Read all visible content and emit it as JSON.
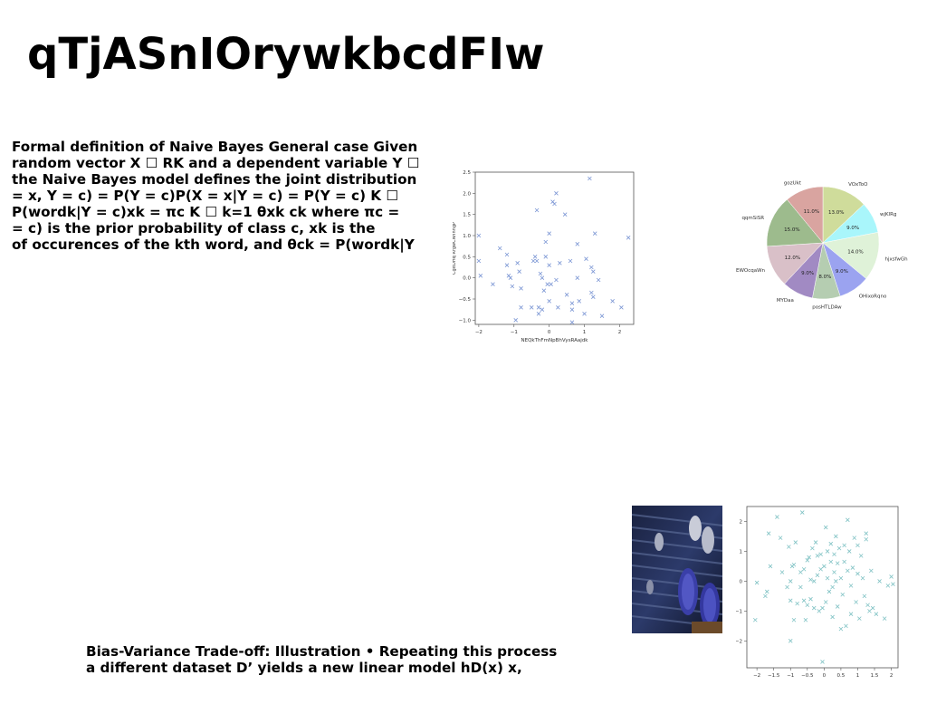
{
  "slide": {
    "title": "qTjASnIOrywkbcdFIw",
    "paragraph1": [
      "Formal definition of Naive Bayes General case Given",
      "random vector X ☐ RK and a dependent variable Y ☐",
      "the Naive Bayes model defines the joint distribution",
      "= x, Y = c) = P(Y = c)P(X = x|Y = c) = P(Y = c) K ☐",
      "P(wordk|Y = c)xk = πc K ☐ k=1 θxk ck where πc =",
      "= c) is the prior probability of class c, xk is the",
      "of occurences of the kth word, and θck = P(wordk|Y"
    ],
    "paragraph2": [
      "Bias-Variance Trade-off: Illustration • Repeating this process",
      "a different dataset D’ yields a new linear model hD(x) x,"
    ]
  },
  "photo": {
    "icon": "sneakers-photo",
    "description_colors": [
      "#1e2a4a",
      "#3b4a8c",
      "#9aa0b8"
    ]
  },
  "chart_data": [
    {
      "type": "scatter",
      "xlabel": "NEQkThFmNpBhVysRAajdk",
      "ylabel": "CgltDHq RrgwCNnnngP",
      "xlim": [
        -2.1,
        2.4
      ],
      "ylim": [
        -1.1,
        2.5
      ],
      "xticks": [
        -2,
        -1,
        0,
        1,
        2
      ],
      "yticks": [
        -1.0,
        -0.5,
        0.0,
        0.5,
        1.0,
        1.5,
        2.0,
        2.5
      ],
      "marker": "x",
      "color": "#7b96d4",
      "points": [
        [
          -2.0,
          1.0
        ],
        [
          -2.0,
          0.4
        ],
        [
          -1.95,
          0.05
        ],
        [
          -1.6,
          -0.15
        ],
        [
          -1.4,
          0.7
        ],
        [
          -1.2,
          0.55
        ],
        [
          -1.2,
          0.3
        ],
        [
          -1.15,
          0.05
        ],
        [
          -1.1,
          0.0
        ],
        [
          -1.05,
          -0.2
        ],
        [
          -0.95,
          -1.0
        ],
        [
          -0.9,
          0.35
        ],
        [
          -0.85,
          0.15
        ],
        [
          -0.8,
          -0.25
        ],
        [
          -0.8,
          -0.7
        ],
        [
          -0.5,
          -0.7
        ],
        [
          -0.45,
          0.4
        ],
        [
          -0.4,
          0.5
        ],
        [
          -0.35,
          0.4
        ],
        [
          -0.35,
          1.6
        ],
        [
          -0.3,
          -0.7
        ],
        [
          -0.3,
          -0.85
        ],
        [
          -0.25,
          0.1
        ],
        [
          -0.2,
          0.0
        ],
        [
          -0.2,
          -0.75
        ],
        [
          -0.15,
          -0.3
        ],
        [
          -0.1,
          0.5
        ],
        [
          -0.1,
          0.85
        ],
        [
          -0.05,
          -0.15
        ],
        [
          0.0,
          1.05
        ],
        [
          0.0,
          0.3
        ],
        [
          0.0,
          -0.55
        ],
        [
          0.05,
          -0.15
        ],
        [
          0.1,
          1.8
        ],
        [
          0.15,
          1.75
        ],
        [
          0.2,
          2.0
        ],
        [
          0.2,
          -0.05
        ],
        [
          0.25,
          -0.7
        ],
        [
          0.3,
          0.35
        ],
        [
          0.45,
          1.5
        ],
        [
          0.5,
          -0.4
        ],
        [
          0.6,
          0.4
        ],
        [
          0.65,
          -0.6
        ],
        [
          0.65,
          -0.75
        ],
        [
          0.65,
          -1.05
        ],
        [
          0.8,
          0.8
        ],
        [
          0.8,
          0.0
        ],
        [
          0.85,
          -0.55
        ],
        [
          1.0,
          -0.85
        ],
        [
          1.05,
          0.45
        ],
        [
          1.15,
          2.35
        ],
        [
          1.2,
          0.25
        ],
        [
          1.2,
          -0.35
        ],
        [
          1.25,
          0.15
        ],
        [
          1.25,
          -0.45
        ],
        [
          1.3,
          1.05
        ],
        [
          1.4,
          -0.05
        ],
        [
          1.5,
          -0.9
        ],
        [
          1.8,
          -0.55
        ],
        [
          2.05,
          -0.7
        ],
        [
          2.25,
          0.95
        ]
      ]
    },
    {
      "type": "pie",
      "start_angle_deg": 90,
      "direction": "clockwise",
      "slices": [
        {
          "label": "VOxToO",
          "value": 13.0,
          "pct": "13.0%",
          "color": "#cfdc9b"
        },
        {
          "label": "wjKlRg",
          "value": 9.0,
          "pct": "9.0%",
          "color": "#a9f6fb"
        },
        {
          "label": "hjxsfwGh",
          "value": 14.0,
          "pct": "14.0%",
          "color": "#dff2d8"
        },
        {
          "label": "OHixoRqno",
          "value": 9.0,
          "pct": "9.0%",
          "color": "#9ba3f0"
        },
        {
          "label": "posHTLDAw",
          "value": 8.0,
          "pct": "8.0%",
          "color": "#b5cdb1"
        },
        {
          "label": "MYDaa",
          "value": 9.0,
          "pct": "9.0%",
          "color": "#a18ac3"
        },
        {
          "label": "EWOcqaWn",
          "value": 12.0,
          "pct": "12.0%",
          "color": "#d9c0c8"
        },
        {
          "label": "qqmSiSR",
          "value": 15.0,
          "pct": "15.0%",
          "color": "#9dbb8d"
        },
        {
          "label": "gozUkt",
          "value": 11.0,
          "pct": "11.0%",
          "color": "#d9a4a0"
        }
      ]
    },
    {
      "type": "scatter",
      "xlabel": "",
      "ylabel": "",
      "xlim": [
        -2.3,
        2.2
      ],
      "ylim": [
        -2.9,
        2.5
      ],
      "xticks": [
        -2.0,
        -1.5,
        -1.0,
        -0.5,
        0.0,
        0.5,
        1.0,
        1.5,
        2.0
      ],
      "yticks": [
        -2,
        -1,
        0,
        1,
        2
      ],
      "marker": "x",
      "color": "#7fc2c4",
      "points": [
        [
          -2.0,
          -0.05
        ],
        [
          -2.05,
          -1.3
        ],
        [
          -1.75,
          -0.5
        ],
        [
          -1.7,
          -0.35
        ],
        [
          -1.65,
          1.6
        ],
        [
          -1.6,
          0.5
        ],
        [
          -1.4,
          2.15
        ],
        [
          -1.3,
          1.45
        ],
        [
          -1.25,
          0.3
        ],
        [
          -1.1,
          -0.2
        ],
        [
          -1.05,
          1.15
        ],
        [
          -1.0,
          0.0
        ],
        [
          -1.0,
          -0.65
        ],
        [
          -0.95,
          0.5
        ],
        [
          -0.9,
          0.55
        ],
        [
          -0.9,
          -1.3
        ],
        [
          -0.85,
          1.3
        ],
        [
          -0.8,
          -0.75
        ],
        [
          -0.7,
          0.3
        ],
        [
          -0.7,
          -0.2
        ],
        [
          -0.65,
          2.3
        ],
        [
          -0.6,
          -0.65
        ],
        [
          -0.55,
          -1.3
        ],
        [
          -0.5,
          0.7
        ],
        [
          -0.5,
          -0.8
        ],
        [
          -0.45,
          0.8
        ],
        [
          -0.4,
          0.05
        ],
        [
          -0.4,
          -0.6
        ],
        [
          -0.35,
          1.1
        ],
        [
          -0.3,
          0.0
        ],
        [
          -0.3,
          -0.9
        ],
        [
          -0.25,
          1.3
        ],
        [
          -0.2,
          0.2
        ],
        [
          -0.15,
          -1.0
        ],
        [
          -0.1,
          0.9
        ],
        [
          -0.1,
          0.4
        ],
        [
          -0.05,
          -0.9
        ],
        [
          -0.05,
          -2.7
        ],
        [
          0.0,
          0.5
        ],
        [
          0.05,
          1.8
        ],
        [
          0.05,
          -0.7
        ],
        [
          0.1,
          1.0
        ],
        [
          0.1,
          0.1
        ],
        [
          0.15,
          -0.35
        ],
        [
          0.2,
          1.25
        ],
        [
          0.2,
          0.65
        ],
        [
          0.25,
          -0.2
        ],
        [
          0.25,
          -1.2
        ],
        [
          0.3,
          0.9
        ],
        [
          0.3,
          0.3
        ],
        [
          0.35,
          1.5
        ],
        [
          0.4,
          0.6
        ],
        [
          0.4,
          -0.85
        ],
        [
          0.45,
          1.1
        ],
        [
          0.5,
          0.1
        ],
        [
          0.5,
          -1.6
        ],
        [
          0.55,
          -0.45
        ],
        [
          0.6,
          0.65
        ],
        [
          0.65,
          -1.5
        ],
        [
          0.7,
          2.05
        ],
        [
          0.7,
          0.35
        ],
        [
          0.75,
          1.0
        ],
        [
          0.8,
          -0.15
        ],
        [
          0.8,
          -1.1
        ],
        [
          0.85,
          0.45
        ],
        [
          0.9,
          1.45
        ],
        [
          0.95,
          -0.7
        ],
        [
          1.0,
          0.25
        ],
        [
          1.05,
          -1.25
        ],
        [
          1.1,
          0.85
        ],
        [
          1.15,
          0.1
        ],
        [
          1.2,
          -0.5
        ],
        [
          1.25,
          1.6
        ],
        [
          1.25,
          1.4
        ],
        [
          1.3,
          -0.8
        ],
        [
          1.35,
          -1.0
        ],
        [
          1.4,
          0.35
        ],
        [
          1.45,
          -0.9
        ],
        [
          1.55,
          -1.1
        ],
        [
          1.65,
          0.0
        ],
        [
          1.8,
          -1.25
        ],
        [
          1.9,
          -0.15
        ],
        [
          2.0,
          0.15
        ],
        [
          2.05,
          -0.1
        ],
        [
          -1.0,
          -2.0
        ],
        [
          -0.2,
          0.85
        ],
        [
          0.35,
          0.0
        ],
        [
          -0.6,
          0.4
        ],
        [
          1.0,
          1.2
        ],
        [
          0.6,
          1.2
        ]
      ]
    }
  ]
}
